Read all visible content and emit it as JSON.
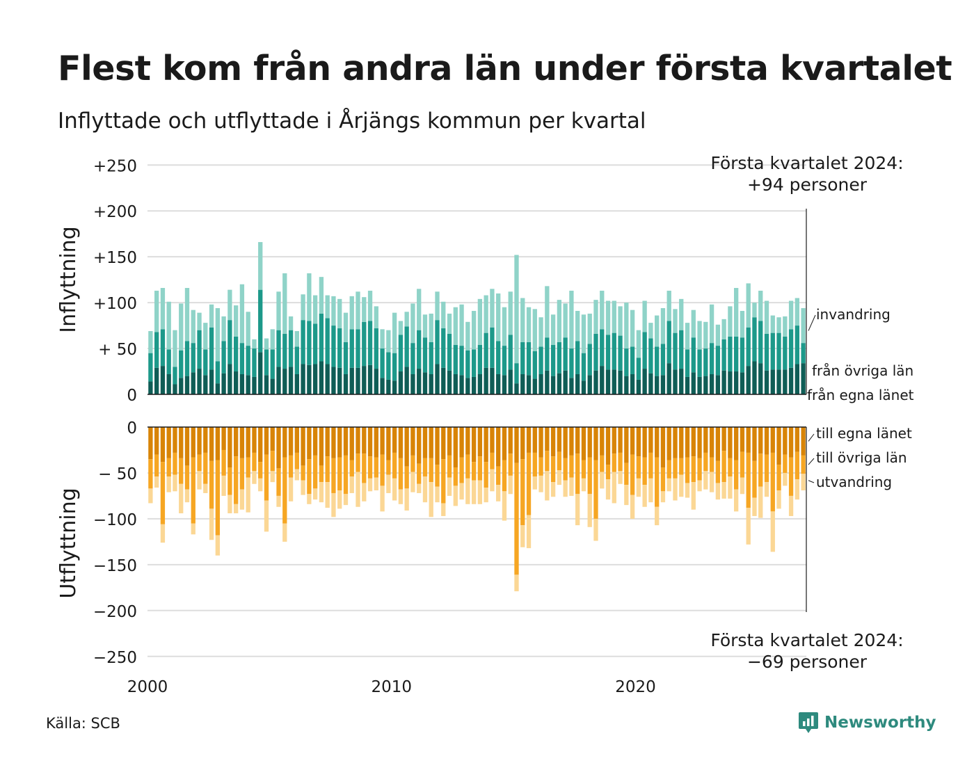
{
  "title": "Flest kom från andra län under första kvartalet",
  "subtitle": "Inflyttade och utflyttade i Årjängs kommun per kvartal",
  "source": "Källa: SCB",
  "brand": "Newsworthy",
  "colors": {
    "in_own": "#0f5d56",
    "in_other": "#1d998a",
    "in_immig": "#8fd3c8",
    "out_own": "#d88407",
    "out_other": "#f6a623",
    "out_emig": "#fbd795",
    "grid": "#dddddd",
    "brand": "#2e8a7e"
  },
  "chart_data": {
    "type": "bar",
    "stacked": true,
    "start_year": 2000,
    "interval": "quarter",
    "ylabel_top": "Inflyttning",
    "ylabel_bottom": "Utflyttning",
    "y_ticks_top": [
      "0",
      "+ 50",
      "+100",
      "+150",
      "+200",
      "+250"
    ],
    "y_ticks_bottom": [
      "0",
      "− 50",
      "−100",
      "−150",
      "−200",
      "−250"
    ],
    "x_ticks": [
      "2000",
      "2010",
      "2020"
    ],
    "ylim_top": [
      0,
      250
    ],
    "ylim_bottom": [
      -250,
      0
    ],
    "grid": true,
    "annotation_top": [
      "Första kvartalet 2024:",
      "+94 personer"
    ],
    "annotation_bottom": [
      "Första kvartalet 2024:",
      "−69 personer"
    ],
    "series_labels_top": [
      "invandring",
      "från övriga län",
      "från egna länet"
    ],
    "series_labels_bottom": [
      "till egna länet",
      "till övriga län",
      "utvandring"
    ],
    "series": [
      {
        "name": "från egna länet",
        "group": "in",
        "values": [
          14,
          29,
          31,
          22,
          11,
          18,
          20,
          24,
          28,
          21,
          27,
          12,
          23,
          33,
          25,
          22,
          21,
          19,
          46,
          21,
          17,
          30,
          28,
          30,
          22,
          33,
          32,
          33,
          36,
          33,
          30,
          29,
          22,
          29,
          29,
          31,
          32,
          28,
          18,
          16,
          15,
          25,
          30,
          22,
          28,
          24,
          22,
          33,
          29,
          26,
          22,
          21,
          18,
          19,
          22,
          29,
          29,
          22,
          21,
          27,
          12,
          22,
          21,
          17,
          22,
          26,
          20,
          23,
          26,
          18,
          22,
          15,
          21,
          26,
          31,
          27,
          27,
          26,
          20,
          22,
          16,
          28,
          23,
          20,
          21,
          34,
          27,
          28,
          19,
          24,
          19,
          20,
          22,
          21,
          26,
          25,
          25,
          24,
          31,
          36,
          34,
          26,
          27,
          27,
          27,
          29,
          33,
          34
        ]
      },
      {
        "name": "från övriga län",
        "group": "in",
        "values": [
          31,
          39,
          40,
          27,
          19,
          30,
          38,
          32,
          42,
          28,
          46,
          24,
          35,
          48,
          38,
          34,
          32,
          31,
          68,
          28,
          32,
          40,
          38,
          40,
          30,
          48,
          48,
          44,
          52,
          50,
          45,
          43,
          35,
          42,
          42,
          48,
          48,
          44,
          32,
          30,
          30,
          40,
          44,
          34,
          42,
          38,
          35,
          48,
          43,
          40,
          32,
          32,
          30,
          30,
          32,
          38,
          44,
          36,
          32,
          38,
          22,
          35,
          36,
          30,
          30,
          36,
          34,
          34,
          36,
          32,
          36,
          30,
          34,
          40,
          40,
          38,
          40,
          38,
          30,
          30,
          24,
          40,
          38,
          32,
          34,
          46,
          40,
          42,
          30,
          38,
          30,
          30,
          34,
          32,
          34,
          38,
          38,
          38,
          42,
          48,
          46,
          40,
          40,
          40,
          36,
          42,
          42,
          22
        ]
      },
      {
        "name": "invandring",
        "group": "in",
        "values": [
          24,
          45,
          45,
          52,
          40,
          51,
          58,
          36,
          19,
          29,
          25,
          58,
          27,
          33,
          34,
          64,
          37,
          10,
          52,
          12,
          22,
          42,
          66,
          15,
          17,
          28,
          52,
          31,
          40,
          25,
          32,
          32,
          32,
          36,
          41,
          27,
          33,
          24,
          21,
          24,
          44,
          15,
          16,
          43,
          45,
          25,
          31,
          31,
          29,
          22,
          41,
          45,
          31,
          42,
          50,
          41,
          42,
          52,
          42,
          47,
          118,
          48,
          38,
          46,
          32,
          56,
          33,
          46,
          37,
          63,
          33,
          42,
          33,
          37,
          42,
          37,
          35,
          32,
          50,
          40,
          30,
          34,
          17,
          34,
          39,
          33,
          26,
          34,
          29,
          30,
          31,
          29,
          42,
          23,
          22,
          33,
          53,
          29,
          48,
          16,
          33,
          36,
          19,
          17,
          22,
          31,
          30,
          38
        ]
      },
      {
        "name": "till egna länet",
        "group": "out",
        "values": [
          35,
          30,
          38,
          34,
          28,
          34,
          42,
          33,
          30,
          28,
          37,
          36,
          25,
          44,
          32,
          34,
          33,
          28,
          38,
          30,
          26,
          45,
          33,
          31,
          28,
          42,
          35,
          31,
          42,
          32,
          34,
          33,
          31,
          36,
          29,
          29,
          32,
          33,
          30,
          36,
          28,
          34,
          43,
          31,
          40,
          34,
          34,
          41,
          35,
          31,
          44,
          33,
          30,
          38,
          32,
          38,
          28,
          43,
          36,
          29,
          39,
          35,
          28,
          28,
          33,
          26,
          32,
          27,
          34,
          31,
          29,
          36,
          33,
          36,
          31,
          41,
          29,
          28,
          39,
          30,
          32,
          33,
          28,
          33,
          44,
          36,
          34,
          34,
          33,
          32,
          34,
          28,
          33,
          37,
          26,
          34,
          36,
          27,
          28,
          37,
          29,
          30,
          28,
          41,
          30,
          33,
          27,
          31
        ]
      },
      {
        "name": "till övriga län",
        "group": "out",
        "values": [
          32,
          24,
          68,
          20,
          24,
          28,
          26,
          72,
          18,
          34,
          52,
          82,
          28,
          30,
          52,
          34,
          22,
          20,
          18,
          50,
          22,
          30,
          72,
          24,
          18,
          16,
          38,
          36,
          18,
          28,
          38,
          36,
          42,
          18,
          20,
          32,
          24,
          22,
          34,
          16,
          28,
          34,
          24,
          18,
          22,
          20,
          26,
          24,
          48,
          24,
          20,
          28,
          26,
          20,
          26,
          28,
          18,
          20,
          34,
          24,
          122,
          72,
          68,
          26,
          20,
          22,
          28,
          20,
          24,
          24,
          44,
          20,
          40,
          64,
          18,
          16,
          20,
          20,
          24,
          44,
          24,
          30,
          28,
          54,
          26,
          20,
          22,
          18,
          28,
          28,
          24,
          20,
          16,
          24,
          34,
          20,
          32,
          28,
          60,
          40,
          36,
          30,
          64,
          28,
          20,
          42,
          30,
          20
        ]
      },
      {
        "name": "utvandring",
        "group": "out",
        "values": [
          16,
          12,
          20,
          17,
          18,
          32,
          14,
          12,
          20,
          10,
          34,
          22,
          22,
          20,
          10,
          22,
          38,
          14,
          14,
          34,
          12,
          12,
          20,
          26,
          12,
          16,
          11,
          12,
          22,
          28,
          26,
          20,
          12,
          18,
          38,
          20,
          14,
          14,
          28,
          20,
          24,
          16,
          24,
          22,
          10,
          28,
          38,
          17,
          14,
          20,
          22,
          18,
          28,
          26,
          26,
          16,
          24,
          18,
          32,
          20,
          18,
          24,
          36,
          14,
          18,
          32,
          16,
          16,
          18,
          20,
          34,
          14,
          36,
          24,
          18,
          22,
          34,
          14,
          22,
          26,
          20,
          24,
          26,
          20,
          12,
          14,
          24,
          24,
          16,
          30,
          12,
          20,
          22,
          18,
          18,
          24,
          24,
          18,
          40,
          20,
          34,
          16,
          44,
          20,
          14,
          22,
          22,
          18
        ]
      }
    ]
  }
}
